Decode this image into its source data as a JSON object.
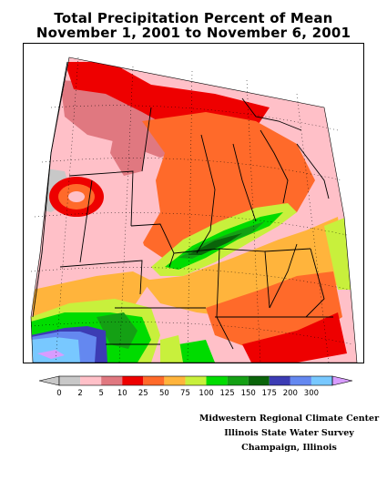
{
  "title": {
    "line1": "Total Precipitation Percent of Mean",
    "line2": "November 1, 2001 to November 6, 2001"
  },
  "legend": {
    "bins": [
      {
        "label": "0",
        "color": "#c8c8c8"
      },
      {
        "label": "2",
        "color": "#ffc0c8"
      },
      {
        "label": "5",
        "color": "#e07880"
      },
      {
        "label": "10",
        "color": "#ee0000"
      },
      {
        "label": "25",
        "color": "#ff6a2a"
      },
      {
        "label": "50",
        "color": "#ffb43c"
      },
      {
        "label": "75",
        "color": "#c8f03c"
      },
      {
        "label": "100",
        "color": "#00dc00"
      },
      {
        "label": "125",
        "color": "#14a014"
      },
      {
        "label": "150",
        "color": "#0a640a"
      },
      {
        "label": "175",
        "color": "#3c3cb4"
      },
      {
        "label": "200",
        "color": "#6488f0"
      },
      {
        "label": "300",
        "color": "#78c8ff"
      }
    ],
    "over_color": "#d89cff"
  },
  "credits": {
    "line1": "Midwestern Regional Climate Center",
    "line2": "Illinois State Water Survey",
    "line3": "Champaign, Illinois"
  }
}
